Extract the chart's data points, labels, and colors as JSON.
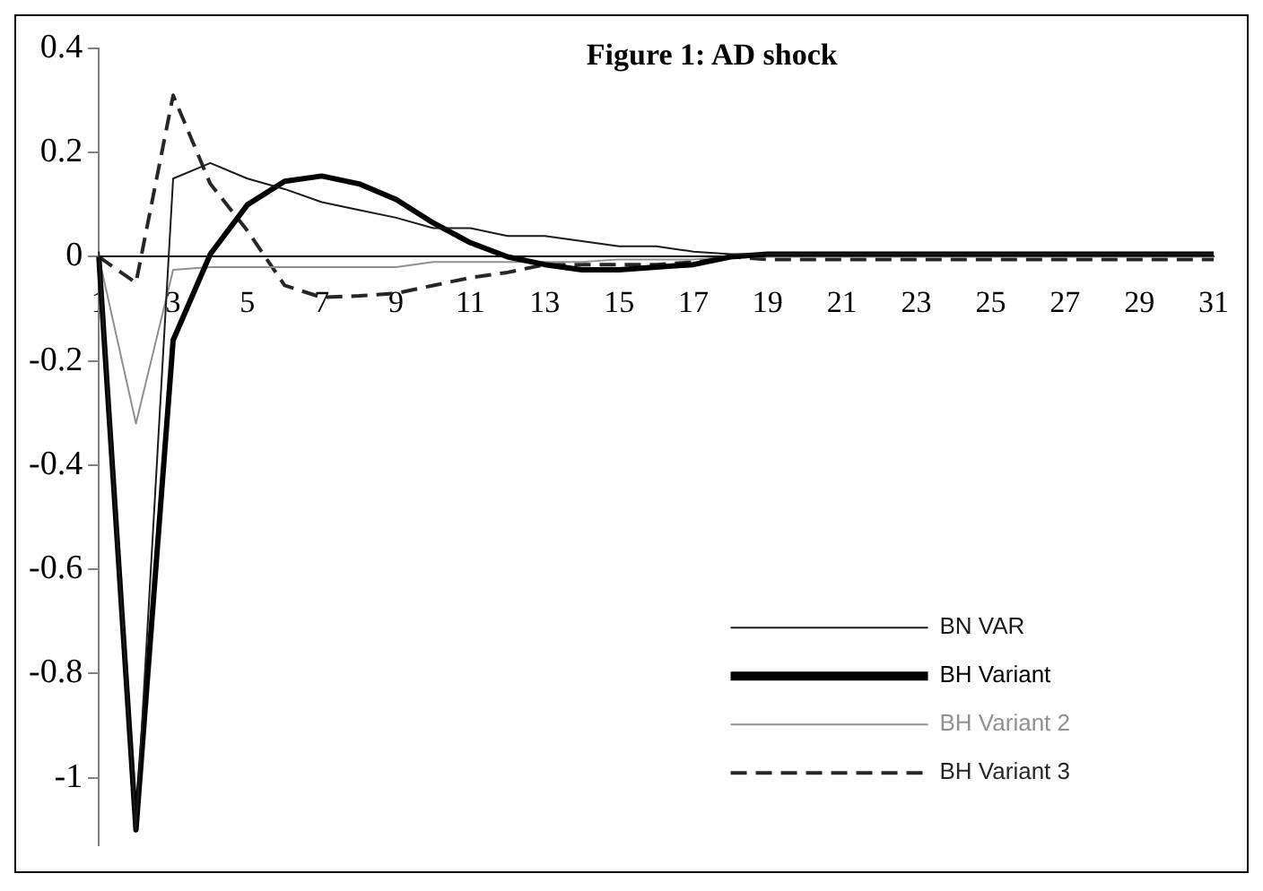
{
  "chart_data": {
    "type": "line",
    "title": "Figure 1: AD shock",
    "categories": [
      "1",
      null,
      "3",
      null,
      "5",
      null,
      "7",
      null,
      "9",
      null,
      "11",
      null,
      "13",
      null,
      "15",
      null,
      "17",
      null,
      "19",
      null,
      "21",
      null,
      "23",
      null,
      "25",
      null,
      "27",
      null,
      "29",
      null,
      "31"
    ],
    "series": [
      {
        "name": "BN VAR",
        "color": "#1a1a1a",
        "line_style": "solid",
        "values": [
          0.01,
          -1.1,
          0.15,
          0.18,
          0.15,
          0.13,
          0.105,
          0.09,
          0.075,
          0.055,
          0.055,
          0.04,
          0.04,
          0.03,
          0.02,
          0.02,
          0.01,
          0.005,
          0.005,
          0.005,
          0.005,
          0.005,
          0.005,
          0.005,
          0.005,
          0.005,
          0.005,
          0.005,
          0.005,
          0.005,
          0.005
        ]
      },
      {
        "name": "BH Variant",
        "color": "#000000",
        "line_style": "solid",
        "values": [
          0.0,
          -1.1,
          -0.16,
          0.005,
          0.1,
          0.145,
          0.155,
          0.14,
          0.11,
          0.065,
          0.027,
          0.0,
          -0.015,
          -0.025,
          -0.025,
          -0.02,
          -0.015,
          0.0,
          0.005,
          0.005,
          0.005,
          0.005,
          0.005,
          0.005,
          0.005,
          0.005,
          0.005,
          0.005,
          0.005,
          0.005,
          0.005
        ]
      },
      {
        "name": "BH Variant 2",
        "color": "#909090",
        "line_style": "solid",
        "values": [
          0.0,
          -0.32,
          -0.025,
          -0.02,
          -0.02,
          -0.02,
          -0.02,
          -0.02,
          -0.02,
          -0.01,
          -0.01,
          -0.01,
          -0.01,
          -0.01,
          -0.005,
          -0.005,
          -0.005,
          0.0,
          0.0,
          0.0,
          0.0,
          0.0,
          0.0,
          0.0,
          0.0,
          0.0,
          0.0,
          0.0,
          0.0,
          0.0,
          0.0
        ]
      },
      {
        "name": "BH Variant 3",
        "color": "#262626",
        "line_style": "dashed",
        "values": [
          0.0,
          -0.05,
          0.31,
          0.14,
          0.05,
          -0.055,
          -0.078,
          -0.075,
          -0.07,
          -0.055,
          -0.04,
          -0.03,
          -0.015,
          -0.015,
          -0.015,
          -0.015,
          -0.01,
          0.0,
          -0.005,
          -0.005,
          -0.005,
          -0.005,
          -0.005,
          -0.005,
          -0.005,
          -0.005,
          -0.005,
          -0.005,
          -0.005,
          -0.005,
          -0.005
        ]
      }
    ],
    "ylim": [
      -1.13,
      0.4
    ],
    "yticks": [
      -1,
      -0.8,
      -0.6,
      -0.4,
      -0.2,
      0,
      0.2,
      0.4
    ],
    "grid": false,
    "legend": "bottom right",
    "marker": "none"
  }
}
